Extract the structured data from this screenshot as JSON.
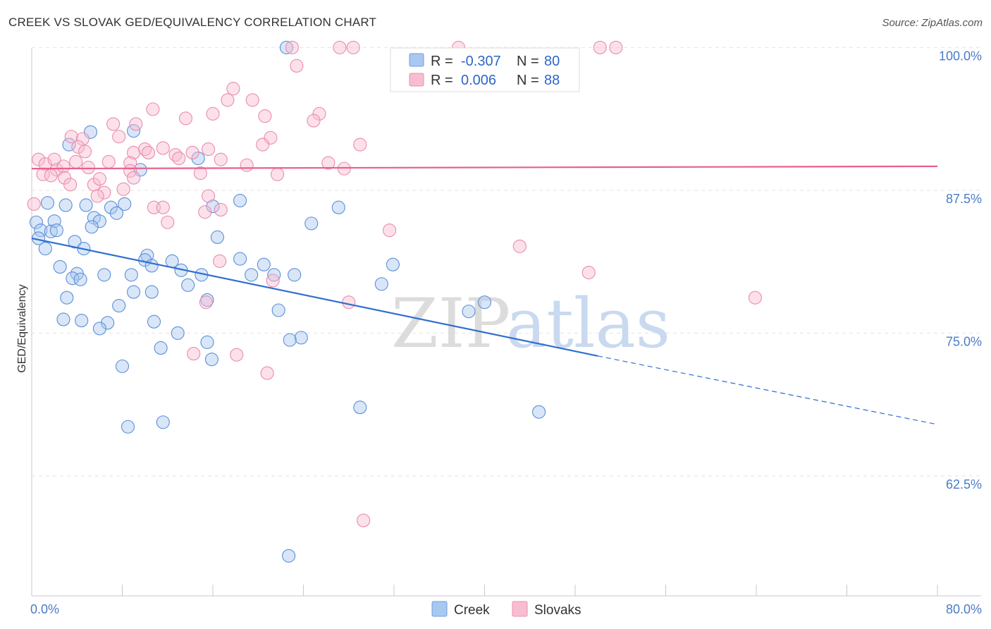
{
  "header": {
    "title": "CREEK VS SLOVAK GED/EQUIVALENCY CORRELATION CHART",
    "source": "Source: ZipAtlas.com"
  },
  "watermark": {
    "part1": "ZIP",
    "part2": "atlas"
  },
  "legend": {
    "rows": [
      {
        "r_label": "R =",
        "r_value": "-0.307",
        "n_label": "N =",
        "n_value": "80",
        "color": "#a9c8f0",
        "stroke": "#6d9ee0"
      },
      {
        "r_label": "R =",
        "r_value": "0.006",
        "n_label": "N =",
        "n_value": "88",
        "color": "#f8bdd0",
        "stroke": "#ec8fb0"
      }
    ]
  },
  "bottom_legend": {
    "items": [
      "Creek",
      "Slovaks"
    ]
  },
  "chart_data": {
    "type": "scatter",
    "title": "CREEK VS SLOVAK GED/EQUIVALENCY CORRELATION CHART",
    "xlabel": "",
    "ylabel": "GED/Equivalency",
    "xlim": [
      0,
      80
    ],
    "ylim": [
      52,
      102
    ],
    "x_tick_labels": [
      "0.0%",
      "80.0%"
    ],
    "y_ticks": [
      62.5,
      75.0,
      87.5,
      100.0
    ],
    "y_tick_labels": [
      "62.5%",
      "75.0%",
      "87.5%",
      "100.0%"
    ],
    "grid": true,
    "legend_position": "top-center",
    "series": [
      {
        "name": "Creek",
        "color": "#a9c8f0",
        "stroke": "#5b8fd8",
        "trend": {
          "x": [
            0,
            50
          ],
          "y": [
            83.3,
            73.0
          ],
          "dashed_to": [
            80,
            67.0
          ],
          "color": "#2f6fd0"
        },
        "points": [
          [
            22.5,
            100
          ],
          [
            9,
            92.7
          ],
          [
            5.2,
            92.6
          ],
          [
            3.3,
            91.5
          ],
          [
            14.7,
            90.3
          ],
          [
            9.6,
            89.3
          ],
          [
            1.4,
            86.4
          ],
          [
            3.0,
            86.2
          ],
          [
            4.8,
            86.2
          ],
          [
            7.0,
            86.0
          ],
          [
            8.2,
            86.3
          ],
          [
            18.4,
            86.6
          ],
          [
            16.0,
            86.1
          ],
          [
            27.1,
            86.0
          ],
          [
            7.5,
            85.5
          ],
          [
            5.5,
            85.1
          ],
          [
            6.0,
            84.8
          ],
          [
            0.4,
            84.7
          ],
          [
            2.0,
            84.8
          ],
          [
            5.3,
            84.3
          ],
          [
            24.7,
            84.6
          ],
          [
            0.8,
            84.0
          ],
          [
            1.7,
            83.9
          ],
          [
            2.2,
            84.0
          ],
          [
            0.6,
            83.3
          ],
          [
            16.4,
            83.4
          ],
          [
            3.8,
            83.0
          ],
          [
            1.2,
            82.4
          ],
          [
            4.6,
            82.4
          ],
          [
            10.2,
            81.8
          ],
          [
            10.0,
            81.4
          ],
          [
            12.4,
            81.3
          ],
          [
            18.4,
            81.5
          ],
          [
            20.5,
            81.0
          ],
          [
            31.9,
            81.0
          ],
          [
            10.6,
            80.9
          ],
          [
            2.5,
            80.8
          ],
          [
            13.2,
            80.5
          ],
          [
            4.0,
            80.2
          ],
          [
            6.4,
            80.1
          ],
          [
            8.8,
            80.1
          ],
          [
            15.0,
            80.1
          ],
          [
            19.4,
            80.1
          ],
          [
            21.4,
            80.1
          ],
          [
            23.2,
            80.1
          ],
          [
            3.6,
            79.8
          ],
          [
            4.3,
            79.7
          ],
          [
            13.8,
            79.2
          ],
          [
            30.9,
            79.3
          ],
          [
            9.0,
            78.6
          ],
          [
            10.6,
            78.6
          ],
          [
            3.1,
            78.1
          ],
          [
            15.5,
            77.9
          ],
          [
            7.7,
            77.4
          ],
          [
            40.0,
            77.7
          ],
          [
            21.8,
            77.0
          ],
          [
            38.6,
            76.9
          ],
          [
            2.8,
            76.2
          ],
          [
            4.4,
            76.1
          ],
          [
            6.7,
            75.9
          ],
          [
            10.8,
            76.0
          ],
          [
            6.0,
            75.4
          ],
          [
            12.9,
            75.0
          ],
          [
            23.8,
            74.6
          ],
          [
            22.8,
            74.4
          ],
          [
            15.5,
            74.2
          ],
          [
            11.4,
            73.7
          ],
          [
            15.9,
            72.7
          ],
          [
            8.0,
            72.1
          ],
          [
            29.0,
            68.5
          ],
          [
            44.8,
            68.1
          ],
          [
            11.6,
            67.2
          ],
          [
            8.5,
            66.8
          ],
          [
            22.7,
            55.5
          ]
        ]
      },
      {
        "name": "Slovaks",
        "color": "#f8bdd0",
        "stroke": "#e98cac",
        "trend": {
          "x": [
            0,
            80
          ],
          "y": [
            89.4,
            89.6
          ],
          "color": "#e8608c"
        },
        "points": [
          [
            23.0,
            100
          ],
          [
            27.2,
            100
          ],
          [
            28.4,
            100
          ],
          [
            37.7,
            100
          ],
          [
            50.2,
            100
          ],
          [
            51.6,
            100
          ],
          [
            23.4,
            98.4
          ],
          [
            38.2,
            96.8
          ],
          [
            17.8,
            96.4
          ],
          [
            17.3,
            95.4
          ],
          [
            19.5,
            95.4
          ],
          [
            10.7,
            94.6
          ],
          [
            16.0,
            94.2
          ],
          [
            20.6,
            94.0
          ],
          [
            25.4,
            94.2
          ],
          [
            13.6,
            93.8
          ],
          [
            24.9,
            93.6
          ],
          [
            7.2,
            93.3
          ],
          [
            9.2,
            93.3
          ],
          [
            3.5,
            92.2
          ],
          [
            4.5,
            92.0
          ],
          [
            7.7,
            92.2
          ],
          [
            21.1,
            92.1
          ],
          [
            20.4,
            91.5
          ],
          [
            29.0,
            91.5
          ],
          [
            4.1,
            91.3
          ],
          [
            4.7,
            90.9
          ],
          [
            9.0,
            90.8
          ],
          [
            10.0,
            91.1
          ],
          [
            10.3,
            90.8
          ],
          [
            11.6,
            91.2
          ],
          [
            12.7,
            90.6
          ],
          [
            14.2,
            90.8
          ],
          [
            15.6,
            91.1
          ],
          [
            0.6,
            90.2
          ],
          [
            1.2,
            89.8
          ],
          [
            2.0,
            90.2
          ],
          [
            3.9,
            90.0
          ],
          [
            5.0,
            89.5
          ],
          [
            6.8,
            90.0
          ],
          [
            8.7,
            89.9
          ],
          [
            13.0,
            90.3
          ],
          [
            16.7,
            90.2
          ],
          [
            19.0,
            89.7
          ],
          [
            26.2,
            89.9
          ],
          [
            27.6,
            89.4
          ],
          [
            2.2,
            89.3
          ],
          [
            2.8,
            89.6
          ],
          [
            1.0,
            88.9
          ],
          [
            1.7,
            88.8
          ],
          [
            2.9,
            88.6
          ],
          [
            8.7,
            89.2
          ],
          [
            9.0,
            88.6
          ],
          [
            14.9,
            89.0
          ],
          [
            21.7,
            88.9
          ],
          [
            3.4,
            88.0
          ],
          [
            5.5,
            88.0
          ],
          [
            6.0,
            88.5
          ],
          [
            6.4,
            87.3
          ],
          [
            8.1,
            87.6
          ],
          [
            5.8,
            87.0
          ],
          [
            15.6,
            87.0
          ],
          [
            0.2,
            86.3
          ],
          [
            10.8,
            86.0
          ],
          [
            11.6,
            86.0
          ],
          [
            16.7,
            85.8
          ],
          [
            15.3,
            85.6
          ],
          [
            12.0,
            84.7
          ],
          [
            31.6,
            84.0
          ],
          [
            43.1,
            82.6
          ],
          [
            16.6,
            81.3
          ],
          [
            49.2,
            80.3
          ],
          [
            21.3,
            79.6
          ],
          [
            63.9,
            78.1
          ],
          [
            15.4,
            77.7
          ],
          [
            28.0,
            77.7
          ],
          [
            14.3,
            73.2
          ],
          [
            18.1,
            73.1
          ],
          [
            20.8,
            71.5
          ],
          [
            29.3,
            58.6
          ]
        ]
      }
    ]
  }
}
